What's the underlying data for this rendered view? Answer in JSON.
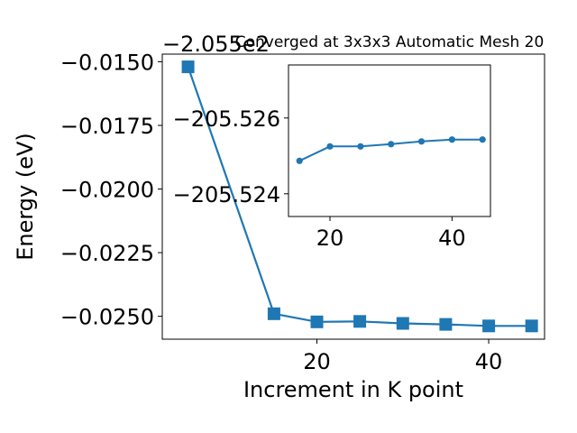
{
  "chart_data": [
    {
      "type": "line",
      "title": "Converged at 3x3x3 Automatic Mesh 20",
      "xlabel": "Increment in K point",
      "ylabel": "Energy (eV)",
      "offset_text": "−2.055e2",
      "xlim": [
        2,
        46.5
      ],
      "ylim": [
        -0.0259,
        -0.0147
      ],
      "x_ticks": [
        20,
        40
      ],
      "x_tick_labels": [
        "20",
        "40"
      ],
      "y_ticks": [
        -0.015,
        -0.0175,
        -0.02,
        -0.0225,
        -0.025
      ],
      "y_tick_labels": [
        "−0.0150",
        "−0.0175",
        "−0.0200",
        "−0.0225",
        "−0.0250"
      ],
      "grid": false,
      "color": "#1f77b4",
      "marker": "square",
      "series": [
        {
          "x": [
            5,
            15,
            20,
            25,
            30,
            35,
            40,
            45
          ],
          "y": [
            -0.0152,
            -0.0249,
            -0.02522,
            -0.0252,
            -0.02528,
            -0.02532,
            -0.02538,
            -0.02538
          ]
        }
      ]
    },
    {
      "type": "line",
      "title": "",
      "xlabel": "",
      "ylabel": "",
      "xlim": [
        13.2,
        46.3
      ],
      "ylim": [
        -205.5234,
        -205.5274
      ],
      "x_ticks": [
        20,
        40
      ],
      "x_tick_labels": [
        "20",
        "40"
      ],
      "y_ticks": [
        -205.526,
        -205.524
      ],
      "y_tick_labels": [
        "−205.526",
        "−205.524"
      ],
      "grid": false,
      "color": "#1f77b4",
      "marker": "circle",
      "series": [
        {
          "x": [
            15,
            20,
            25,
            30,
            35,
            40,
            45
          ],
          "y": [
            -205.52487,
            -205.52525,
            -205.52525,
            -205.52531,
            -205.52538,
            -205.52543,
            -205.52543
          ]
        }
      ]
    }
  ]
}
